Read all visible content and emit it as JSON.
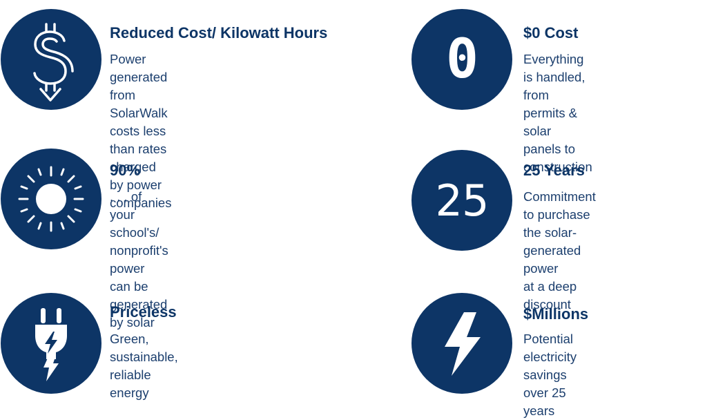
{
  "theme": {
    "accent": "#0d3566",
    "background": "#ffffff"
  },
  "features": [
    {
      "icon": "dollar-down-arrow-icon",
      "title": "Reduced Cost/ Kilowatt Hours",
      "description": "Power generated from\nSolarWalk costs less than rates\ncharged by power companies"
    },
    {
      "icon": "zero",
      "icon_text": "0",
      "title": "$0 Cost",
      "description": "Everything is handled,\nfrom permits & solar\npanels to construction"
    },
    {
      "icon": "sun-icon",
      "title": "90%",
      "description": ". . . of your school's/\nnonprofit's power can be\ngenerated by solar"
    },
    {
      "icon": "twenty-five",
      "icon_text": "25",
      "title": "25 Years",
      "description": "Commitment to purchase\nthe solar-generated power\nat a deep discount"
    },
    {
      "icon": "plug-bolt-icon",
      "title": "Priceless",
      "description": "Green, sustainable,\nreliable energy"
    },
    {
      "icon": "lightning-bolt-icon",
      "title": "$Millions",
      "description": "Potential electricity\nsavings over 25 years"
    }
  ]
}
